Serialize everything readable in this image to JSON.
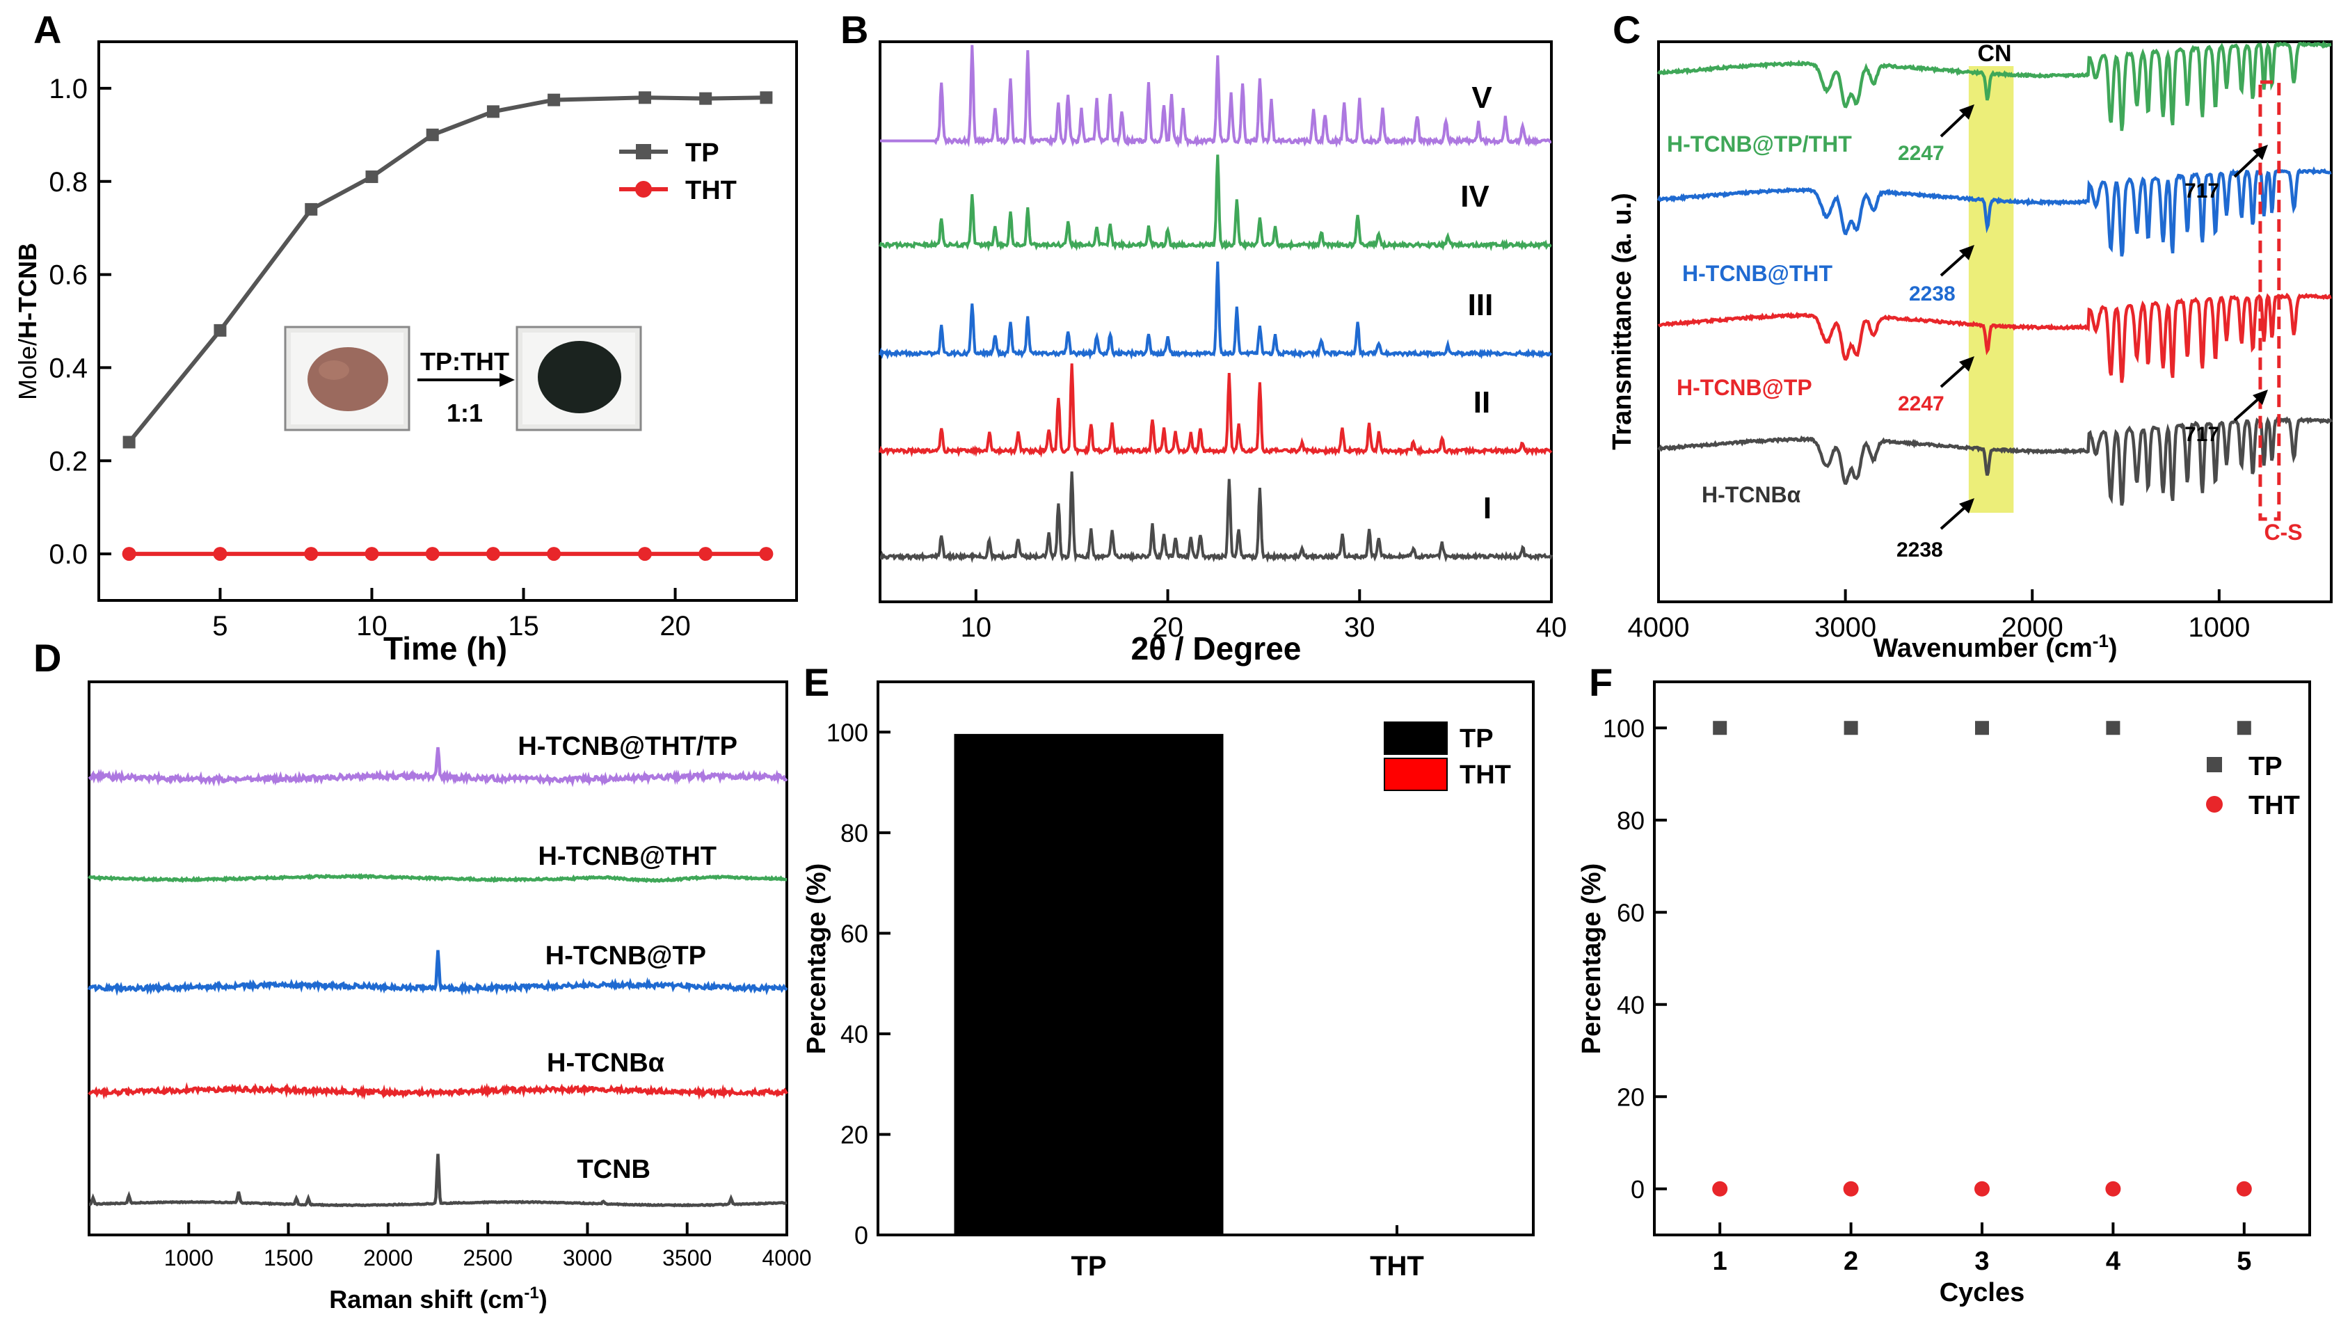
{
  "panels": {
    "A": {
      "letter": "A"
    },
    "B": {
      "letter": "B"
    },
    "C": {
      "letter": "C"
    },
    "D": {
      "letter": "D"
    },
    "E": {
      "letter": "E"
    },
    "F": {
      "letter": "F"
    }
  },
  "inset_A": {
    "ratio_label": "TP:THT",
    "ratio_value": "1:1",
    "left_photo_color": "#9b6a5e",
    "right_photo_color": "#1b231f"
  },
  "annotations_B": {
    "traces": [
      "V",
      "IV",
      "III",
      "II",
      "I"
    ]
  },
  "annotations_C": {
    "cn_label": "CN",
    "cs_label": "C-S",
    "peaks": [
      {
        "trace": 0,
        "text": "2247"
      },
      {
        "trace": 0,
        "text": "717"
      },
      {
        "trace": 1,
        "text": "2238"
      },
      {
        "trace": 2,
        "text": "2247"
      },
      {
        "trace": 2,
        "text": "717"
      },
      {
        "trace": 3,
        "text": "2238"
      }
    ]
  },
  "chart_data": [
    {
      "panel": "A",
      "type": "line",
      "title": "",
      "xlabel": "Time (h)",
      "ylabel_prefix": "Mole/",
      "ylabel_main": "H-TCNB",
      "xlim": [
        1,
        24
      ],
      "ylim": [
        -0.1,
        1.1
      ],
      "xticks": [
        5,
        10,
        15,
        20
      ],
      "yticks": [
        "0.0",
        "0.2",
        "0.4",
        "0.6",
        "0.8",
        "1.0"
      ],
      "legend_position": "right",
      "series": [
        {
          "name": "TP",
          "color": "#555555",
          "marker": "square",
          "x": [
            2,
            5,
            8,
            10,
            12,
            14,
            16,
            19,
            21,
            23
          ],
          "y": [
            0.24,
            0.48,
            0.74,
            0.81,
            0.9,
            0.95,
            0.975,
            0.98,
            0.978,
            0.98
          ]
        },
        {
          "name": "THT",
          "color": "#e8262a",
          "marker": "circle",
          "x": [
            2,
            5,
            8,
            10,
            12,
            14,
            16,
            19,
            21,
            23
          ],
          "y": [
            0,
            0,
            0,
            0,
            0,
            0,
            0,
            0,
            0,
            0
          ]
        }
      ]
    },
    {
      "panel": "B",
      "type": "line",
      "title": "",
      "xlabel": "2θ / Degree",
      "xlim": [
        5,
        40
      ],
      "xticks": [
        10,
        20,
        30,
        40
      ],
      "traces": [
        {
          "label": "V",
          "color": "#ad78e0",
          "peaks": [
            [
              8.2,
              0.55
            ],
            [
              9.8,
              0.9
            ],
            [
              11.0,
              0.3
            ],
            [
              11.8,
              0.6
            ],
            [
              12.7,
              0.85
            ],
            [
              14.3,
              0.35
            ],
            [
              14.8,
              0.45
            ],
            [
              15.5,
              0.3
            ],
            [
              16.3,
              0.4
            ],
            [
              17.0,
              0.45
            ],
            [
              17.6,
              0.3
            ],
            [
              19.0,
              0.55
            ],
            [
              19.8,
              0.35
            ],
            [
              20.2,
              0.45
            ],
            [
              20.8,
              0.3
            ],
            [
              22.6,
              0.8
            ],
            [
              23.3,
              0.45
            ],
            [
              23.9,
              0.55
            ],
            [
              24.8,
              0.6
            ],
            [
              25.4,
              0.4
            ],
            [
              27.6,
              0.3
            ],
            [
              28.2,
              0.25
            ],
            [
              29.2,
              0.35
            ],
            [
              30.0,
              0.4
            ],
            [
              31.2,
              0.3
            ],
            [
              33.0,
              0.25
            ],
            [
              34.5,
              0.2
            ],
            [
              36.2,
              0.18
            ],
            [
              37.6,
              0.22
            ],
            [
              38.5,
              0.15
            ]
          ]
        },
        {
          "label": "IV",
          "color": "#3fa758",
          "peaks": [
            [
              8.2,
              0.3
            ],
            [
              9.8,
              0.55
            ],
            [
              11.0,
              0.2
            ],
            [
              11.8,
              0.35
            ],
            [
              12.7,
              0.4
            ],
            [
              14.8,
              0.25
            ],
            [
              16.3,
              0.2
            ],
            [
              17.0,
              0.22
            ],
            [
              19.0,
              0.2
            ],
            [
              20.0,
              0.18
            ],
            [
              22.6,
              1.0
            ],
            [
              23.6,
              0.5
            ],
            [
              24.8,
              0.3
            ],
            [
              25.6,
              0.2
            ],
            [
              28.0,
              0.15
            ],
            [
              29.9,
              0.35
            ],
            [
              31.0,
              0.12
            ],
            [
              34.6,
              0.1
            ]
          ]
        },
        {
          "label": "III",
          "color": "#1f6ad1",
          "peaks": [
            [
              8.2,
              0.3
            ],
            [
              9.8,
              0.55
            ],
            [
              11.0,
              0.2
            ],
            [
              11.8,
              0.35
            ],
            [
              12.7,
              0.4
            ],
            [
              14.8,
              0.25
            ],
            [
              16.3,
              0.2
            ],
            [
              17.0,
              0.22
            ],
            [
              19.0,
              0.2
            ],
            [
              20.0,
              0.18
            ],
            [
              22.6,
              1.0
            ],
            [
              23.6,
              0.5
            ],
            [
              24.8,
              0.3
            ],
            [
              25.6,
              0.2
            ],
            [
              28.0,
              0.15
            ],
            [
              29.9,
              0.35
            ],
            [
              31.0,
              0.12
            ],
            [
              34.6,
              0.1
            ]
          ]
        },
        {
          "label": "II",
          "color": "#e8262a",
          "peaks": [
            [
              8.2,
              0.25
            ],
            [
              10.7,
              0.2
            ],
            [
              12.2,
              0.2
            ],
            [
              13.8,
              0.25
            ],
            [
              14.3,
              0.6
            ],
            [
              15.0,
              0.95
            ],
            [
              16.0,
              0.3
            ],
            [
              17.1,
              0.3
            ],
            [
              19.2,
              0.35
            ],
            [
              19.8,
              0.25
            ],
            [
              20.4,
              0.2
            ],
            [
              21.2,
              0.2
            ],
            [
              21.7,
              0.25
            ],
            [
              23.2,
              0.85
            ],
            [
              23.7,
              0.3
            ],
            [
              24.8,
              0.75
            ],
            [
              27.0,
              0.1
            ],
            [
              29.1,
              0.25
            ],
            [
              30.5,
              0.3
            ],
            [
              31.0,
              0.2
            ],
            [
              32.8,
              0.1
            ],
            [
              34.3,
              0.15
            ],
            [
              38.5,
              0.1
            ]
          ]
        },
        {
          "label": "I",
          "color": "#4a4a4a",
          "peaks": [
            [
              8.2,
              0.25
            ],
            [
              10.7,
              0.2
            ],
            [
              12.2,
              0.2
            ],
            [
              13.8,
              0.25
            ],
            [
              14.3,
              0.6
            ],
            [
              15.0,
              0.95
            ],
            [
              16.0,
              0.3
            ],
            [
              17.1,
              0.3
            ],
            [
              19.2,
              0.35
            ],
            [
              19.8,
              0.25
            ],
            [
              20.4,
              0.2
            ],
            [
              21.2,
              0.2
            ],
            [
              21.7,
              0.25
            ],
            [
              23.2,
              0.85
            ],
            [
              23.7,
              0.3
            ],
            [
              24.8,
              0.75
            ],
            [
              27.0,
              0.1
            ],
            [
              29.1,
              0.25
            ],
            [
              30.5,
              0.3
            ],
            [
              31.0,
              0.2
            ],
            [
              32.8,
              0.1
            ],
            [
              34.3,
              0.15
            ],
            [
              38.5,
              0.1
            ]
          ]
        }
      ]
    },
    {
      "panel": "C",
      "type": "line",
      "title": "",
      "xlabel": "Wavenumber (cm",
      "xlabel_sup": "-1",
      "xlabel_end": ")",
      "ylabel": "Transmittance (a. u.)",
      "xlim": [
        4000,
        400
      ],
      "xticks": [
        4000,
        3000,
        2000,
        1000
      ],
      "traces": [
        {
          "label": "H-TCNB@TP/THT",
          "color": "#3fa758"
        },
        {
          "label": "H-TCNB@THT",
          "color": "#1f6ad1"
        },
        {
          "label": "H-TCNB@TP",
          "color": "#e8262a"
        },
        {
          "label": "H-TCNBα",
          "color": "#4a4a4a"
        }
      ],
      "highlight_band": [
        2340,
        2100
      ],
      "cs_box": [
        780,
        680
      ]
    },
    {
      "panel": "D",
      "type": "line",
      "title": "",
      "xlabel": "Raman shift (cm",
      "xlabel_sup": "-1",
      "xlabel_end": ")",
      "xlim": [
        500,
        4000
      ],
      "xticks": [
        1000,
        1500,
        2000,
        2500,
        3000,
        3500,
        4000
      ],
      "traces": [
        {
          "label": "H-TCNB@THT/TP",
          "color": "#ad78e0",
          "peaks": [
            [
              2250,
              1.0
            ]
          ]
        },
        {
          "label": "H-TCNB@THT",
          "color": "#3fa758",
          "peaks": []
        },
        {
          "label": "H-TCNB@TP",
          "color": "#1f6ad1",
          "peaks": [
            [
              2250,
              1.2
            ]
          ]
        },
        {
          "label": "H-TCNBα",
          "color": "#e8262a",
          "peaks": []
        },
        {
          "label": "TCNB",
          "color": "#4a4a4a",
          "peaks": [
            [
              520,
              0.2
            ],
            [
              700,
              0.25
            ],
            [
              1250,
              0.35
            ],
            [
              1540,
              0.2
            ],
            [
              1600,
              0.2
            ],
            [
              2250,
              1.6
            ],
            [
              3080,
              0.08
            ],
            [
              3720,
              0.2
            ]
          ]
        }
      ]
    },
    {
      "panel": "E",
      "type": "bar",
      "title": "",
      "xlabel": "",
      "ylabel": "Percentage (%)",
      "categories": [
        "TP",
        "THT"
      ],
      "values": [
        99.5,
        0
      ],
      "colors": [
        "#000000",
        "#ff0000"
      ],
      "ylim": [
        0,
        110
      ],
      "yticks": [
        0,
        20,
        40,
        60,
        80,
        100
      ],
      "legend": [
        "TP",
        "THT"
      ],
      "legend_position": "top-right"
    },
    {
      "panel": "F",
      "type": "scatter",
      "title": "",
      "xlabel": "Cycles",
      "ylabel": "Percentage (%)",
      "xlim": [
        0.5,
        5.5
      ],
      "ylim": [
        -10,
        110
      ],
      "xticks": [
        1,
        2,
        3,
        4,
        5
      ],
      "yticks": [
        0,
        20,
        40,
        60,
        80,
        100
      ],
      "legend_position": "right",
      "series": [
        {
          "name": "TP",
          "color": "#4a4a4a",
          "marker": "square",
          "x": [
            1,
            2,
            3,
            4,
            5
          ],
          "y": [
            100,
            100,
            100,
            100,
            100
          ]
        },
        {
          "name": "THT",
          "color": "#e8262a",
          "marker": "circle",
          "x": [
            1,
            2,
            3,
            4,
            5
          ],
          "y": [
            0,
            0,
            0,
            0,
            0
          ]
        }
      ]
    }
  ]
}
